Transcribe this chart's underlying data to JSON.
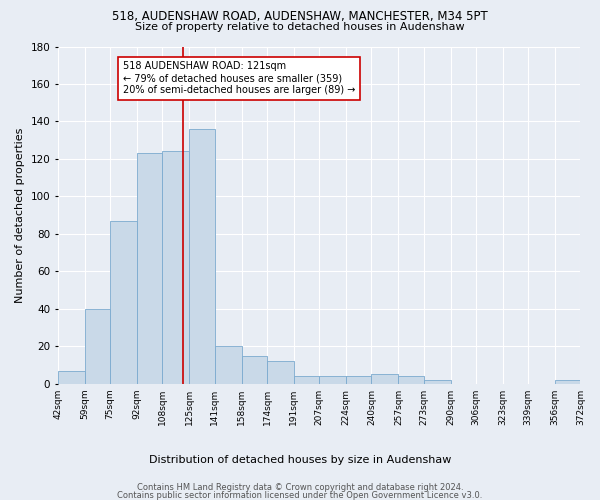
{
  "title1": "518, AUDENSHAW ROAD, AUDENSHAW, MANCHESTER, M34 5PT",
  "title2": "Size of property relative to detached houses in Audenshaw",
  "xlabel": "Distribution of detached houses by size in Audenshaw",
  "ylabel": "Number of detached properties",
  "bar_color": "#c9d9e8",
  "bar_edge_color": "#7baacf",
  "bg_color": "#e8edf4",
  "grid_color": "#ffffff",
  "fig_bg_color": "#e8edf4",
  "vline_x": 121,
  "vline_color": "#cc0000",
  "annotation_text": "518 AUDENSHAW ROAD: 121sqm\n← 79% of detached houses are smaller (359)\n20% of semi-detached houses are larger (89) →",
  "annotation_box_color": "#ffffff",
  "annotation_box_edge": "#cc0000",
  "bin_edges": [
    42,
    59,
    75,
    92,
    108,
    125,
    141,
    158,
    174,
    191,
    207,
    224,
    240,
    257,
    273,
    290,
    306,
    323,
    339,
    356,
    372
  ],
  "bar_heights": [
    7,
    40,
    87,
    123,
    124,
    136,
    20,
    15,
    12,
    4,
    4,
    4,
    5,
    4,
    2,
    0,
    0,
    0,
    0,
    2
  ],
  "footer1": "Contains HM Land Registry data © Crown copyright and database right 2024.",
  "footer2": "Contains public sector information licensed under the Open Government Licence v3.0.",
  "ylim": [
    0,
    180
  ],
  "yticks": [
    0,
    20,
    40,
    60,
    80,
    100,
    120,
    140,
    160,
    180
  ]
}
